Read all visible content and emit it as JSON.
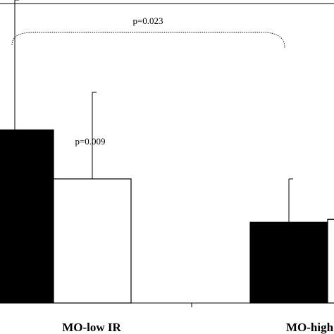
{
  "chart_data": {
    "type": "bar",
    "categories": [
      "MO-low IR",
      "MO-high IR"
    ],
    "series": [
      {
        "color": "#000000",
        "values": [
          0.6,
          0.28
        ],
        "errors": [
          0.45,
          0.15
        ]
      },
      {
        "color": "#ffffff",
        "values": [
          0.43,
          0.29
        ],
        "errors": [
          0.3,
          0.0
        ]
      }
    ],
    "annotations": [
      {
        "text": "p=0.023"
      },
      {
        "text": "p=0.009"
      }
    ],
    "ylim": [
      0,
      1.05
    ],
    "grid": false
  }
}
